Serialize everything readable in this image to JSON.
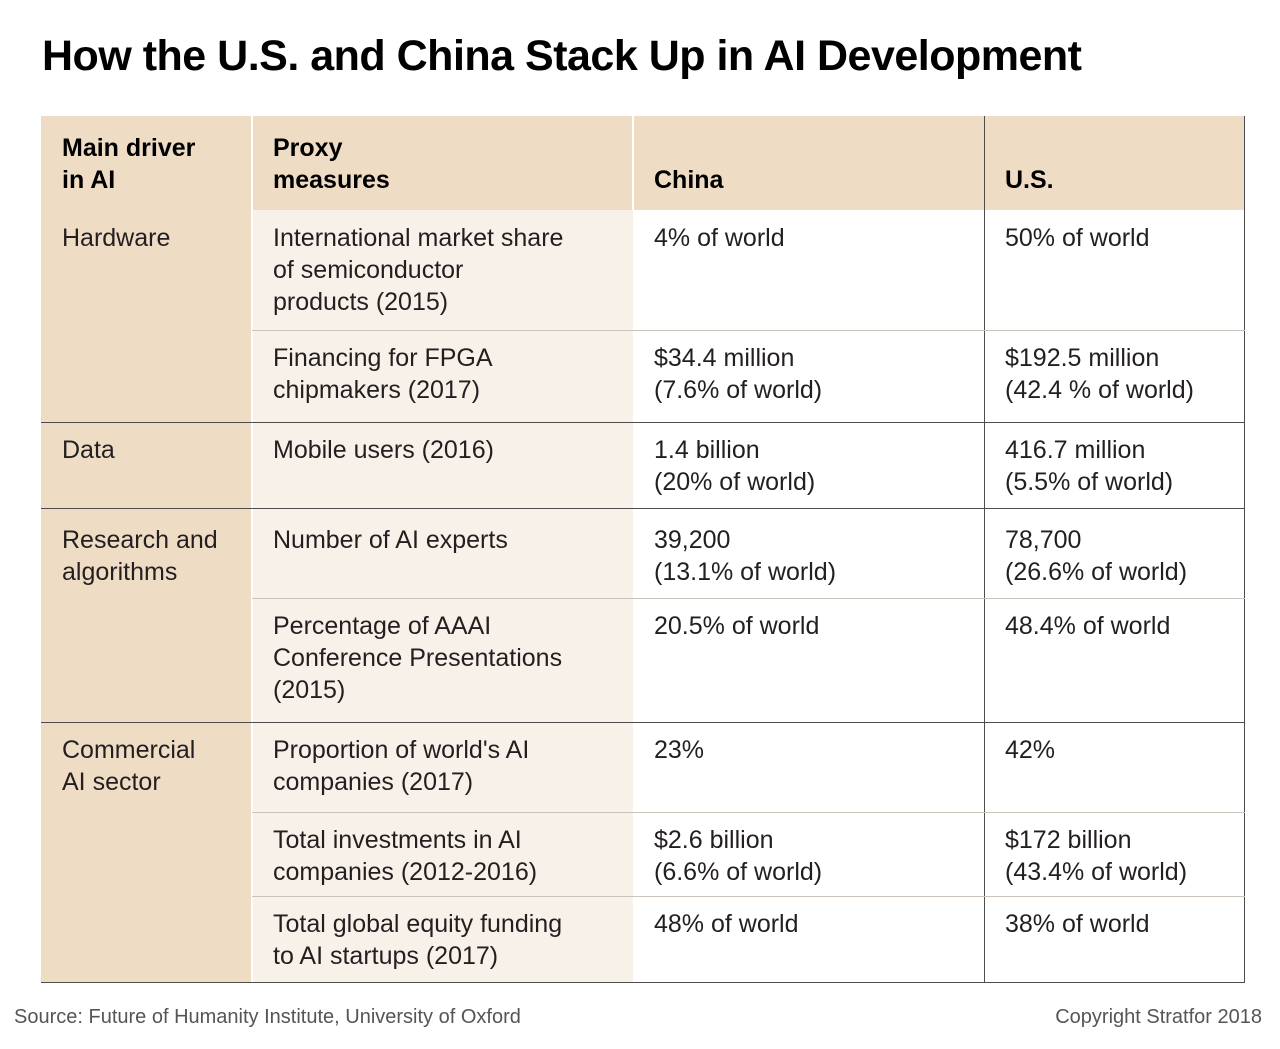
{
  "title": "How the U.S. and China Stack Up in AI Development",
  "headers": {
    "driver": [
      "Main driver",
      "in AI"
    ],
    "proxy": [
      "Proxy",
      "measures"
    ],
    "china": "China",
    "us": "U.S."
  },
  "drivers": [
    {
      "lines": [
        "Hardware"
      ]
    },
    {
      "lines": [
        "Data"
      ]
    },
    {
      "lines": [
        "Research and",
        "algorithms"
      ]
    },
    {
      "lines": [
        "Commercial",
        "AI sector"
      ]
    }
  ],
  "rows": [
    {
      "proxy": [
        "International market share",
        "of semiconductor",
        "products (2015)"
      ],
      "china": [
        "4% of world"
      ],
      "us": [
        "50% of world"
      ]
    },
    {
      "proxy": [
        "Financing for FPGA",
        "chipmakers (2017)"
      ],
      "china": [
        "$34.4 million",
        "(7.6% of world)"
      ],
      "us": [
        "$192.5 million",
        "(42.4 % of world)"
      ]
    },
    {
      "proxy": [
        "Mobile users (2016)"
      ],
      "china": [
        "1.4 billion",
        "(20% of world)"
      ],
      "us": [
        "416.7 million",
        "(5.5% of world)"
      ]
    },
    {
      "proxy": [
        "Number of AI experts"
      ],
      "china": [
        "39,200",
        "(13.1% of world)"
      ],
      "us": [
        "78,700",
        "(26.6% of world)"
      ]
    },
    {
      "proxy": [
        "Percentage of AAAI",
        "Conference Presentations",
        "(2015)"
      ],
      "china": [
        "20.5% of world"
      ],
      "us": [
        "48.4% of world"
      ]
    },
    {
      "proxy": [
        "Proportion of world's AI",
        "companies (2017)"
      ],
      "china": [
        "23%"
      ],
      "us": [
        "42%"
      ]
    },
    {
      "proxy": [
        "Total investments in AI",
        "companies (2012-2016)"
      ],
      "china": [
        "$2.6 billion",
        "(6.6% of world)"
      ],
      "us": [
        "$172 billion",
        "(43.4% of world)"
      ]
    },
    {
      "proxy": [
        "Total global equity funding",
        "to AI startups (2017)"
      ],
      "china": [
        "48% of world"
      ],
      "us": [
        "38% of world"
      ]
    }
  ],
  "source": "Source: Future of Humanity Institute, University of Oxford",
  "copyright": "Copyright Stratfor 2018",
  "colors": {
    "driver_column": "#efdcc5",
    "proxy_column": "#f7f1ea",
    "header_row": "#efdcc5",
    "value_columns": "#ffffff"
  }
}
